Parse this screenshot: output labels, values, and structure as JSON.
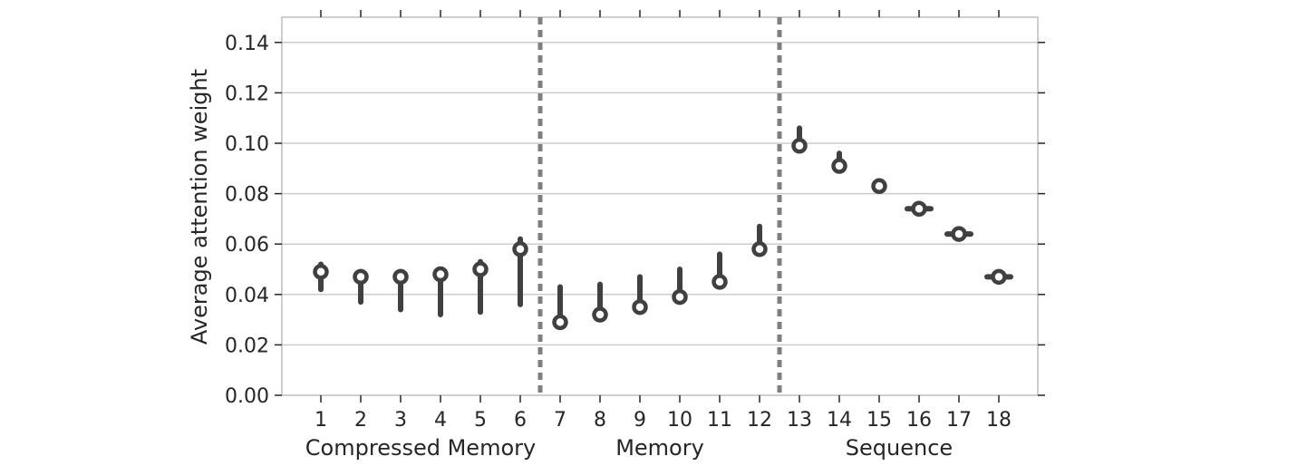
{
  "chart_data": {
    "type": "scatter",
    "title": "",
    "xlabel": "",
    "ylabel": "Average attention weight",
    "ylim": [
      0,
      0.15
    ],
    "y_ticks": [
      0.0,
      0.02,
      0.04,
      0.06,
      0.08,
      0.1,
      0.12,
      0.14
    ],
    "y_tick_labels": [
      "0.00",
      "0.02",
      "0.04",
      "0.06",
      "0.08",
      "0.10",
      "0.12",
      "0.14"
    ],
    "x": [
      1,
      2,
      3,
      4,
      5,
      6,
      7,
      8,
      9,
      10,
      11,
      12,
      13,
      14,
      15,
      16,
      17,
      18
    ],
    "x_tick_labels": [
      "1",
      "2",
      "3",
      "4",
      "5",
      "6",
      "7",
      "8",
      "9",
      "10",
      "11",
      "12",
      "13",
      "14",
      "15",
      "16",
      "17",
      "18"
    ],
    "mean": [
      0.049,
      0.047,
      0.047,
      0.048,
      0.05,
      0.058,
      0.029,
      0.032,
      0.035,
      0.039,
      0.045,
      0.058,
      0.099,
      0.091,
      0.083,
      0.074,
      0.064,
      0.047
    ],
    "low": [
      0.042,
      0.037,
      0.034,
      0.032,
      0.033,
      0.036,
      0.029,
      0.032,
      0.035,
      0.039,
      0.045,
      0.058,
      0.099,
      0.091,
      0.083,
      0.074,
      0.064,
      0.047
    ],
    "high": [
      0.052,
      0.049,
      0.049,
      0.05,
      0.053,
      0.062,
      0.043,
      0.044,
      0.047,
      0.05,
      0.056,
      0.067,
      0.106,
      0.096,
      0.085,
      0.074,
      0.064,
      0.047
    ],
    "group_separators": [
      6.5,
      12.5
    ],
    "groups": [
      {
        "label": "Compressed Memory",
        "center": 3.5
      },
      {
        "label": "Memory",
        "center": 9.5
      },
      {
        "label": "Sequence",
        "center": 15.5
      }
    ],
    "grid": true,
    "legend": "none"
  }
}
